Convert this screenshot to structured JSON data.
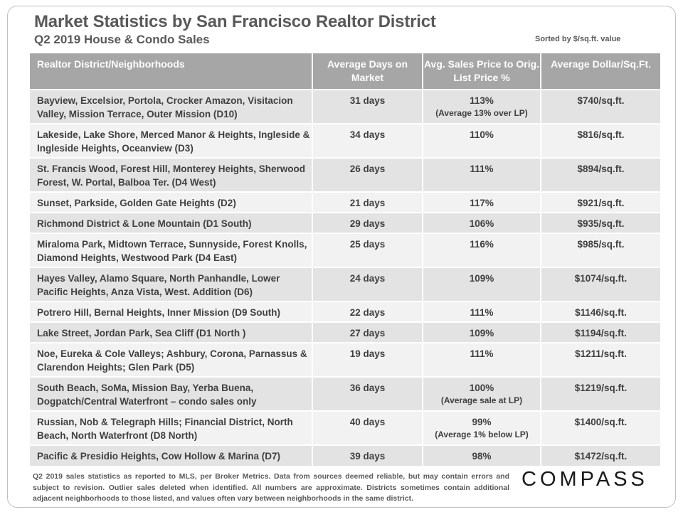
{
  "header": {
    "title": "Market Statistics by San Francisco Realtor District",
    "subtitle": "Q2 2019 House & Condo Sales",
    "sort_note": "Sorted by $/sq.ft. value"
  },
  "table": {
    "columns": [
      "Realtor District/Neighborhoods",
      "Average Days on Market",
      "Avg. Sales Price to Orig. List Price %",
      "Average Dollar/Sq.Ft."
    ],
    "rows": [
      {
        "district": "Bayview, Excelsior, Portola, Crocker Amazon, Visitacion Valley, Mission Terrace, Outer Mission (D10)",
        "days": "31 days",
        "pct": "113%",
        "pct_note": "(Average 13% over LP)",
        "ppsf": "$740/sq.ft."
      },
      {
        "district": "Lakeside, Lake Shore, Merced Manor & Heights, Ingleside & Ingleside Heights, Oceanview (D3)",
        "days": "34 days",
        "pct": "110%",
        "pct_note": "",
        "ppsf": "$816/sq.ft."
      },
      {
        "district": "St. Francis Wood, Forest Hill, Monterey Heights, Sherwood Forest, W. Portal, Balboa Ter. (D4 West)",
        "days": "26 days",
        "pct": "111%",
        "pct_note": "",
        "ppsf": "$894/sq.ft."
      },
      {
        "district": "Sunset, Parkside, Golden Gate Heights (D2)",
        "days": "21 days",
        "pct": "117%",
        "pct_note": "",
        "ppsf": "$921/sq.ft."
      },
      {
        "district": "Richmond District & Lone Mountain (D1 South)",
        "days": "29 days",
        "pct": "106%",
        "pct_note": "",
        "ppsf": "$935/sq.ft."
      },
      {
        "district": "Miraloma Park, Midtown Terrace, Sunnyside, Forest Knolls, Diamond Heights, Westwood Park (D4 East)",
        "days": "25 days",
        "pct": "116%",
        "pct_note": "",
        "ppsf": "$985/sq.ft."
      },
      {
        "district": "Hayes Valley, Alamo Square, North Panhandle, Lower Pacific Heights, Anza Vista, West. Addition (D6)",
        "days": "24 days",
        "pct": "109%",
        "pct_note": "",
        "ppsf": "$1074/sq.ft."
      },
      {
        "district": "Potrero Hill, Bernal Heights, Inner Mission (D9 South)",
        "days": "22 days",
        "pct": "111%",
        "pct_note": "",
        "ppsf": "$1146/sq.ft."
      },
      {
        "district": "Lake Street, Jordan Park, Sea Cliff (D1 North )",
        "days": "27 days",
        "pct": "109%",
        "pct_note": "",
        "ppsf": "$1194/sq.ft."
      },
      {
        "district": "Noe, Eureka & Cole Valleys; Ashbury, Corona, Parnassus & Clarendon Heights; Glen Park (D5)",
        "days": "19 days",
        "pct": "111%",
        "pct_note": "",
        "ppsf": "$1211/sq.ft."
      },
      {
        "district": "South Beach, SoMa, Mission Bay, Yerba Buena, Dogpatch/Central Waterfront – condo sales only",
        "days": "36 days",
        "pct": "100%",
        "pct_note": "(Average sale at LP)",
        "ppsf": "$1219/sq.ft."
      },
      {
        "district": "Russian, Nob & Telegraph Hills; Financial District, North Beach, North Waterfront (D8 North)",
        "days": "40 days",
        "pct": "99%",
        "pct_note": "(Average 1% below LP)",
        "ppsf": "$1400/sq.ft."
      },
      {
        "district": "Pacific & Presidio Heights, Cow Hollow & Marina (D7)",
        "days": "39 days",
        "pct": "98%",
        "pct_note": "",
        "ppsf": "$1472/sq.ft."
      }
    ]
  },
  "footnote": "Q2 2019 sales statistics as reported to MLS, per Broker Metrics. Data from sources deemed reliable, but may contain errors and subject to revision. Outlier sales deleted when identified. All numbers are approximate. Districts sometimes contain additional adjacent neighborhoods to those listed, and values often vary between neighborhoods in the same district.",
  "logo": "COMPASS"
}
